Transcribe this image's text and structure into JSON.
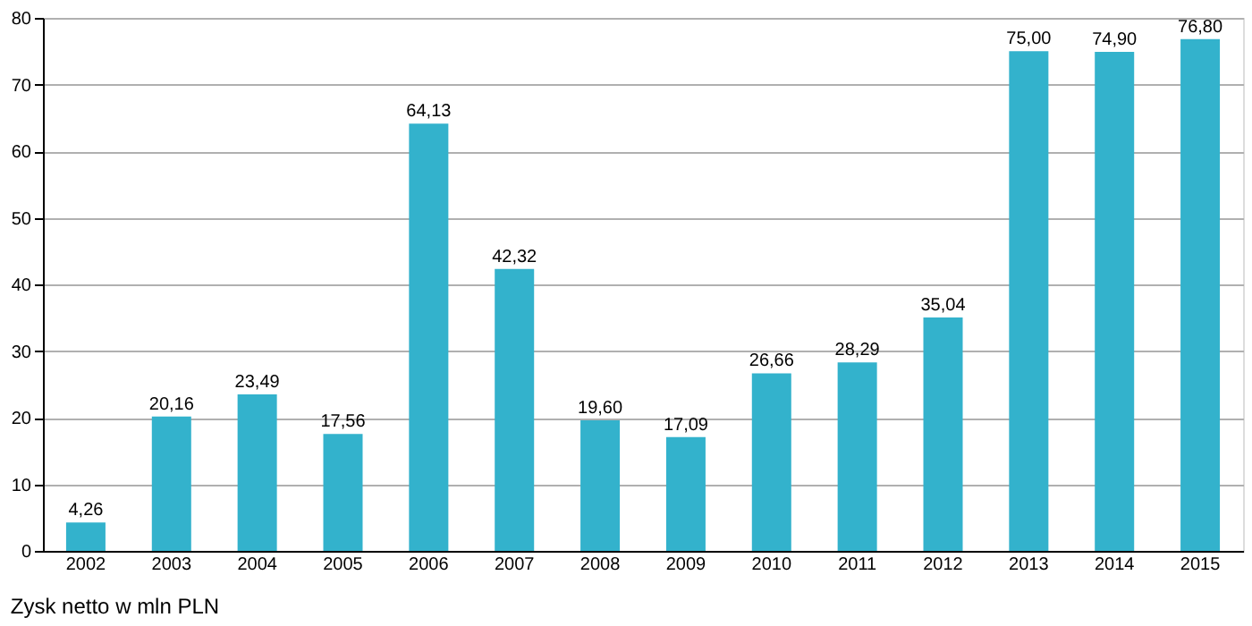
{
  "chart_data": {
    "type": "bar",
    "categories": [
      "2002",
      "2003",
      "2004",
      "2005",
      "2006",
      "2007",
      "2008",
      "2009",
      "2010",
      "2011",
      "2012",
      "2013",
      "2014",
      "2015"
    ],
    "values": [
      4.26,
      20.16,
      23.49,
      17.56,
      64.13,
      42.32,
      19.6,
      17.09,
      26.66,
      28.29,
      35.04,
      75.0,
      74.9,
      76.8
    ],
    "value_labels": [
      "4,26",
      "20,16",
      "23,49",
      "17,56",
      "64,13",
      "42,32",
      "19,60",
      "17,09",
      "26,66",
      "28,29",
      "35,04",
      "75,00",
      "74,90",
      "76,80"
    ],
    "color": "#33b2cc",
    "ylim": [
      0,
      80
    ],
    "yticks": [
      0,
      10,
      20,
      30,
      40,
      50,
      60,
      70,
      80
    ],
    "grid": "y",
    "annotations": [
      "Zysk netto w mln PLN"
    ]
  }
}
